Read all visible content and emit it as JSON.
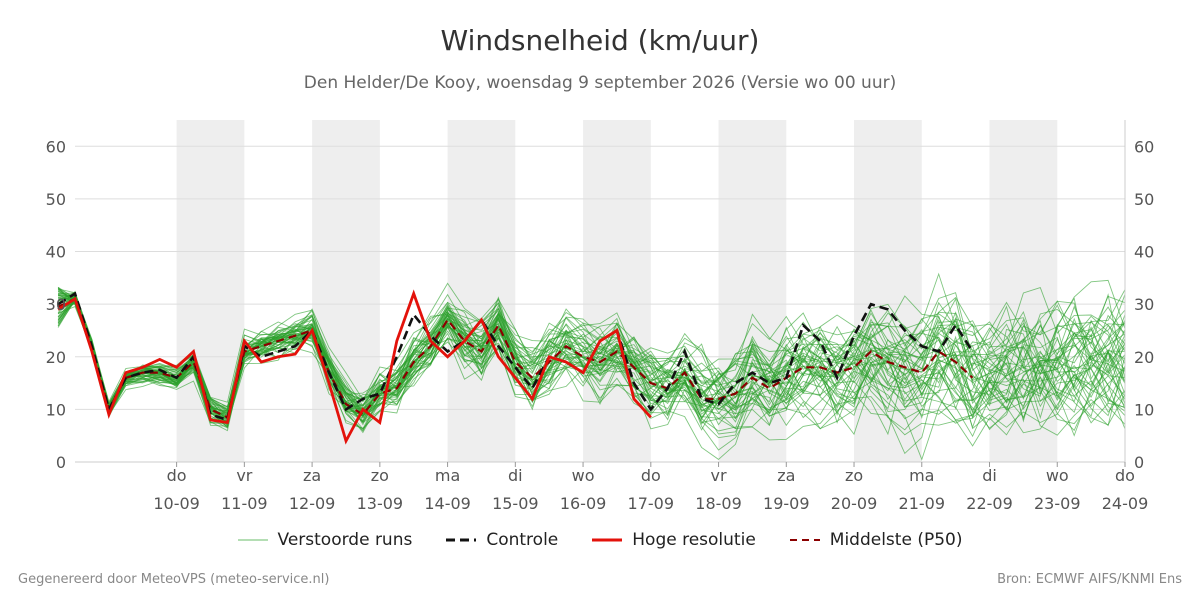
{
  "title": "Windsnelheid (km/uur)",
  "subtitle": "Den Helder/De Kooy, woensdag  9 september 2026 (Versie wo 00 uur)",
  "footer_left": "Gegenereerd door MeteoVPS (meteo-service.nl)",
  "footer_right": "Bron: ECMWF AIFS/KNMI Ens",
  "colors": {
    "ensemble": "#2ca02c",
    "control": "#111111",
    "hires": "#e3120b",
    "median": "#8b0000",
    "weekend_band": "#eeeeee",
    "grid": "#dddddd"
  },
  "legend": [
    {
      "label": "Verstoorde runs",
      "style": "thin-green"
    },
    {
      "label": "Controle",
      "style": "dashed-black"
    },
    {
      "label": "Hoge resolutie",
      "style": "solid-red"
    },
    {
      "label": "Middelste (P50)",
      "style": "dashed-darkred"
    }
  ],
  "chart_data": {
    "type": "line",
    "ylim": [
      0,
      65
    ],
    "yticks": [
      0,
      10,
      20,
      30,
      40,
      50,
      60
    ],
    "x_unit": "days since 2026-09-09 00:00",
    "xlim": [
      -0.5,
      15
    ],
    "x_ticks": [
      {
        "day": "do",
        "date": "10-09"
      },
      {
        "day": "vr",
        "date": "11-09"
      },
      {
        "day": "za",
        "date": "12-09"
      },
      {
        "day": "zo",
        "date": "13-09"
      },
      {
        "day": "ma",
        "date": "14-09"
      },
      {
        "day": "di",
        "date": "15-09"
      },
      {
        "day": "wo",
        "date": "16-09"
      },
      {
        "day": "do",
        "date": "17-09"
      },
      {
        "day": "vr",
        "date": "18-09"
      },
      {
        "day": "za",
        "date": "19-09"
      },
      {
        "day": "zo",
        "date": "20-09"
      },
      {
        "day": "ma",
        "date": "21-09"
      },
      {
        "day": "di",
        "date": "22-09"
      },
      {
        "day": "wo",
        "date": "23-09"
      },
      {
        "day": "do",
        "date": "24-09"
      }
    ],
    "shaded_days": [
      [
        "2026-09-10",
        "2026-09-11"
      ],
      [
        "2026-09-12",
        "2026-09-13"
      ],
      [
        "2026-09-14",
        "2026-09-15"
      ],
      [
        "2026-09-16",
        "2026-09-17"
      ],
      [
        "2026-09-18",
        "2026-09-19"
      ],
      [
        "2026-09-20",
        "2026-09-21"
      ],
      [
        "2026-09-22",
        "2026-09-23"
      ]
    ],
    "ensemble_members": 50,
    "x": [
      -0.75,
      -0.5,
      -0.25,
      0,
      0.25,
      0.5,
      0.75,
      1,
      1.25,
      1.5,
      1.75,
      2,
      2.25,
      2.5,
      2.75,
      3,
      3.25,
      3.5,
      3.75,
      4,
      4.25,
      4.5,
      4.75,
      5,
      5.25,
      5.5,
      5.75,
      6,
      6.25,
      6.5,
      6.75,
      7,
      7.25,
      7.5,
      7.75,
      8,
      8.25,
      8.5,
      8.75,
      9,
      9.25,
      9.5,
      9.75,
      10,
      10.25,
      10.5,
      10.75,
      11,
      11.25,
      11.5,
      11.75,
      12,
      12.25,
      12.5,
      12.75,
      13,
      13.25,
      13.5,
      13.75,
      14,
      14.25,
      14.5,
      14.75,
      15
    ],
    "hires": [
      29,
      31,
      21,
      9,
      17,
      18,
      19.5,
      18,
      21,
      8,
      7.5,
      23,
      19,
      20,
      20.5,
      25,
      15,
      4,
      10,
      7.5,
      23,
      32,
      23,
      20,
      23,
      27,
      20,
      16,
      12,
      20,
      19,
      17,
      23,
      25,
      12,
      8.5,
      null,
      null,
      null,
      null,
      null,
      null,
      null,
      null,
      null,
      null,
      null,
      null,
      null,
      null,
      null,
      null,
      null,
      null,
      null,
      null,
      null,
      null,
      null,
      null,
      null,
      null,
      null,
      null
    ],
    "control": [
      30,
      32,
      22,
      10,
      16,
      17,
      17.5,
      16,
      20,
      9,
      8,
      22,
      20,
      21,
      22,
      25,
      17,
      10,
      12,
      13,
      20,
      28,
      24,
      21,
      23,
      27,
      22,
      18,
      14,
      20,
      19,
      17,
      23,
      25,
      15,
      10,
      14,
      21,
      12,
      11,
      15,
      17,
      15,
      16,
      26,
      23,
      16,
      24,
      30,
      29,
      25,
      22,
      21,
      26,
      21,
      null,
      null,
      null,
      null,
      null,
      null,
      null,
      null,
      null
    ],
    "median": [
      29.5,
      31,
      22,
      10,
      16,
      17,
      17,
      16,
      19,
      10,
      8.5,
      21,
      22,
      23,
      24,
      25,
      17,
      11,
      9,
      13,
      14,
      19,
      22,
      27,
      23,
      21,
      26,
      19,
      16,
      19,
      22,
      20,
      19,
      21,
      18,
      15,
      14,
      17,
      12,
      12,
      13,
      16,
      14,
      16,
      18,
      18,
      17,
      18,
      21,
      19,
      18,
      17,
      21,
      19,
      16,
      null,
      null,
      null,
      null,
      null,
      null,
      null,
      null,
      null
    ]
  }
}
